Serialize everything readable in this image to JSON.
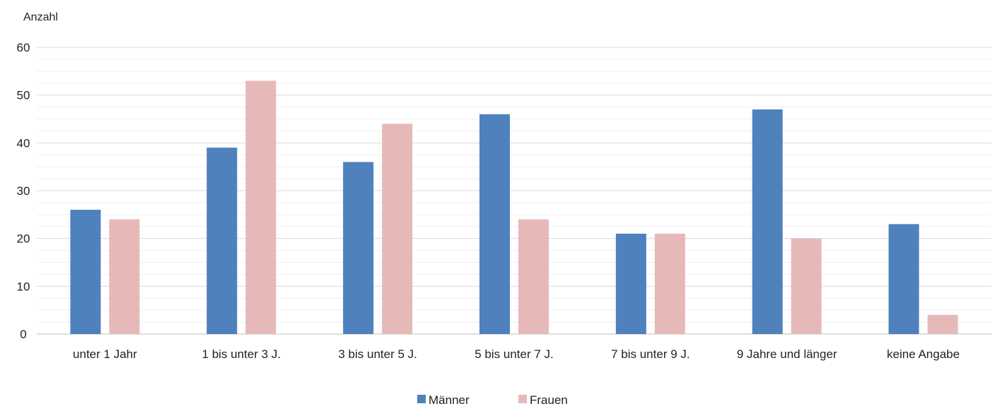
{
  "chart_data": {
    "type": "bar",
    "title": "",
    "xlabel": "",
    "ylabel": "Anzahl",
    "ylim": [
      0,
      60
    ],
    "yticks": [
      0,
      10,
      20,
      30,
      40,
      50,
      60
    ],
    "minor_grid_step": 2.5,
    "grid": true,
    "legend_position": "bottom-center",
    "categories": [
      "unter 1 Jahr",
      "1 bis unter 3 J.",
      "3 bis unter 5 J.",
      "5 bis unter 7 J.",
      "7 bis unter 9 J.",
      "9 Jahre und länger",
      "keine Angabe"
    ],
    "series": [
      {
        "name": "Männer",
        "color": "#4f81bd",
        "values": [
          26,
          39,
          36,
          46,
          21,
          47,
          23
        ]
      },
      {
        "name": "Frauen",
        "color": "#e6b9b8",
        "values": [
          24,
          53,
          44,
          24,
          21,
          20,
          4
        ]
      }
    ]
  }
}
